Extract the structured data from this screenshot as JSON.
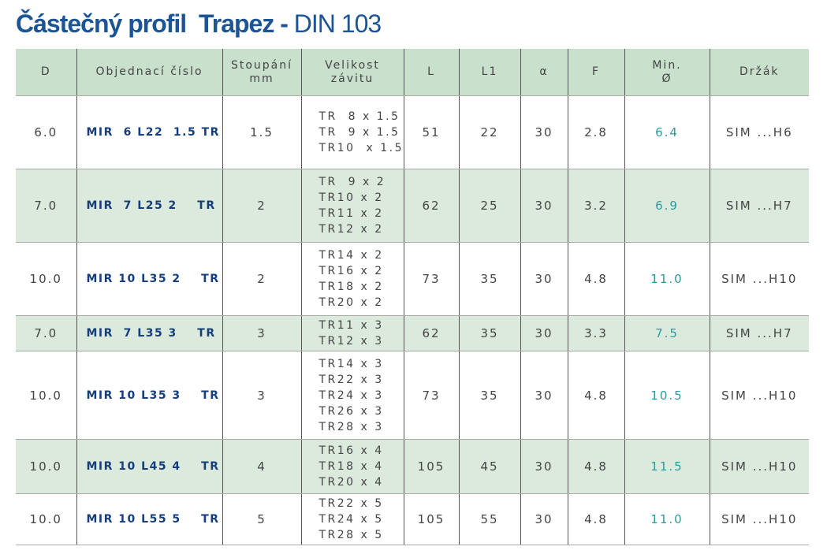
{
  "title": {
    "bold": "Částečný profil  Trapez -",
    "normal": "DIN 103"
  },
  "table": {
    "headers": [
      [
        "D"
      ],
      [
        "Objednací číslo"
      ],
      [
        "Stoupání",
        "mm"
      ],
      [
        "Velikost",
        "závitu"
      ],
      [
        "L"
      ],
      [
        "L1"
      ],
      [
        "α"
      ],
      [
        "F"
      ],
      [
        "Min.",
        "Ø"
      ],
      [
        "Držák"
      ]
    ],
    "rows": [
      [
        "6.0",
        "MIR  6 L22  1.5 TR",
        "1.5",
        [
          "TR  8 x 1.5",
          "TR  9 x 1.5",
          "TR10  x 1.5"
        ],
        "51",
        "22",
        "30",
        "2.8",
        "6.4",
        "SIM ...H6"
      ],
      [
        "7.0",
        "MIR  7 L25 2    TR",
        "2",
        [
          "TR  9 x 2",
          "TR10 x 2",
          "TR11 x 2",
          "TR12 x 2"
        ],
        "62",
        "25",
        "30",
        "3.2",
        "6.9",
        "SIM ...H7"
      ],
      [
        "10.0",
        "MIR 10 L35 2    TR",
        "2",
        [
          "TR14 x 2",
          "TR16 x 2",
          "TR18 x 2",
          "TR20 x 2"
        ],
        "73",
        "35",
        "30",
        "4.8",
        "11.0",
        "SIM ...H10"
      ],
      [
        "7.0",
        "MIR  7 L35 3    TR",
        "3",
        [
          "TR11 x 3",
          "TR12 x 3"
        ],
        "62",
        "35",
        "30",
        "3.3",
        "7.5",
        "SIM ...H7"
      ],
      [
        "10.0",
        "MIR 10 L35 3    TR",
        "3",
        [
          "TR14 x 3",
          "TR22 x 3",
          "TR24 x 3",
          "TR26 x 3",
          "TR28 x 3"
        ],
        "73",
        "35",
        "30",
        "4.8",
        "10.5",
        "SIM ...H10"
      ],
      [
        "10.0",
        "MIR 10 L45 4    TR",
        "4",
        [
          "TR16 x 4",
          "TR18 x 4",
          "TR20 x 4"
        ],
        "105",
        "45",
        "30",
        "4.8",
        "11.5",
        "SIM ...H10"
      ],
      [
        "10.0",
        "MIR 10 L55 5    TR",
        "5",
        [
          "TR22 x 5",
          "TR24 x 5",
          "TR28 x 5"
        ],
        "105",
        "55",
        "30",
        "4.8",
        "11.0",
        "SIM ...H10"
      ]
    ]
  }
}
